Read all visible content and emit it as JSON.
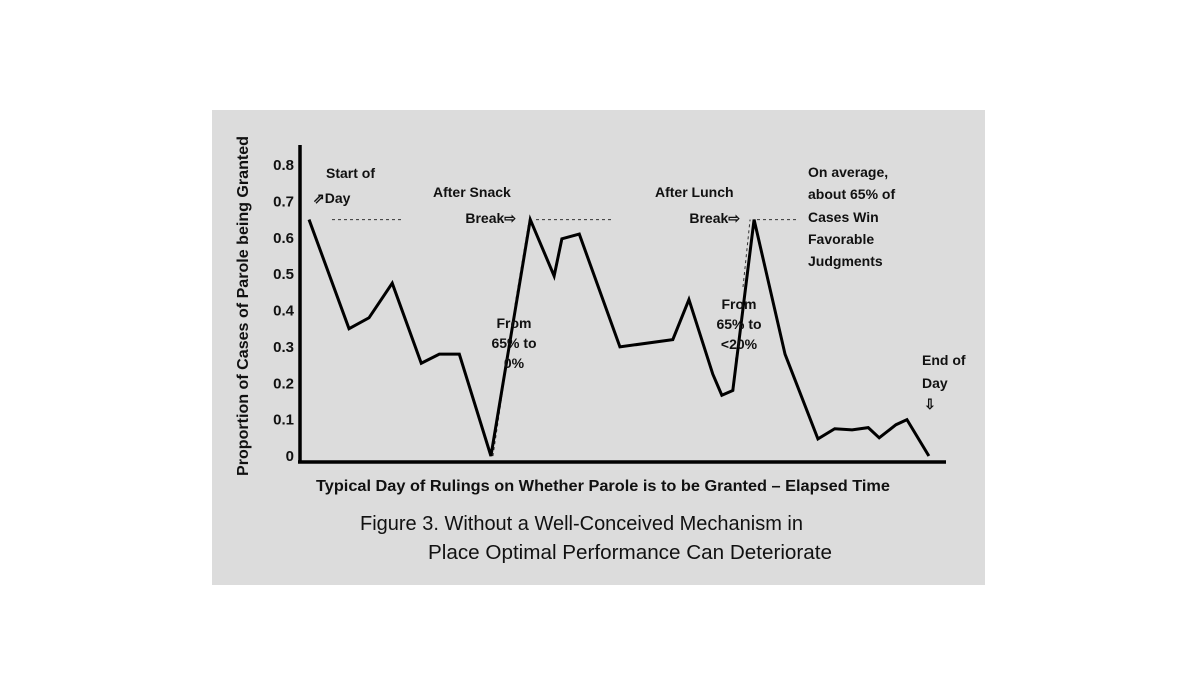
{
  "chart_data": {
    "type": "line",
    "title": "Figure 3. Without a Well-Conceived Mechanism in Place Optimal Performance Can Deteriorate",
    "title_lines": [
      "Figure 3. Without a Well-Conceived Mechanism in",
      "Place Optimal  Performance Can Deteriorate"
    ],
    "xlabel": "Typical Day of Rulings on Whether Parole is to be Granted – Elapsed Time",
    "ylabel": "Proportion of Cases of Parole being Granted",
    "xlim": [
      0,
      100
    ],
    "ylim": [
      0,
      0.8
    ],
    "yticks": [
      0,
      0.1,
      0.2,
      0.3,
      0.4,
      0.5,
      0.6,
      0.7,
      0.8
    ],
    "ytick_labels": [
      "0",
      "0.1",
      "0.2",
      "0.3",
      "0.4",
      "0.5",
      "0.6",
      "0.7",
      "0.8"
    ],
    "grid": false,
    "reference_level": 0.65,
    "series": [
      {
        "name": "Proportion granted",
        "color": "#000000",
        "x": [
          1.4,
          7.6,
          10.7,
          14.3,
          18.8,
          21.6,
          24.7,
          29.6,
          35.7,
          39.4,
          40.6,
          43.3,
          49.6,
          57.8,
          60.3,
          64.0,
          65.4,
          67.1,
          70.4,
          75.2,
          80.3,
          82.9,
          85.6,
          88.1,
          89.8,
          92.4,
          94.1,
          97.5
        ],
        "y": [
          0.65,
          0.35,
          0.38,
          0.475,
          0.255,
          0.28,
          0.28,
          0.0,
          0.65,
          0.495,
          0.597,
          0.61,
          0.3,
          0.32,
          0.43,
          0.225,
          0.167,
          0.18,
          0.65,
          0.28,
          0.047,
          0.075,
          0.072,
          0.078,
          0.05,
          0.086,
          0.1,
          0.0
        ]
      }
    ],
    "annotations": {
      "start_line1": "Start of",
      "start_line2": "⇗Day",
      "snack_line1": "After  Snack",
      "snack_line2": "Break⇨",
      "drop1_line1": "From",
      "drop1_line2": "65% to",
      "drop1_line3": "0%",
      "lunch_line1": "After  Lunch",
      "lunch_line2": "Break⇨",
      "drop2_line1": "From",
      "drop2_line2": "65% to",
      "drop2_line3": "<20%",
      "avg_line1": "On average,",
      "avg_line2": "about 65% of",
      "avg_line3": "Cases Win",
      "avg_line4": "Favorable",
      "avg_line5": "Judgments",
      "end_line1": "End of",
      "end_line2": "Day",
      "end_arrow": "⇩"
    },
    "colors": {
      "panel": "#dcdcdc",
      "line": "#000000",
      "text": "#111111"
    }
  }
}
